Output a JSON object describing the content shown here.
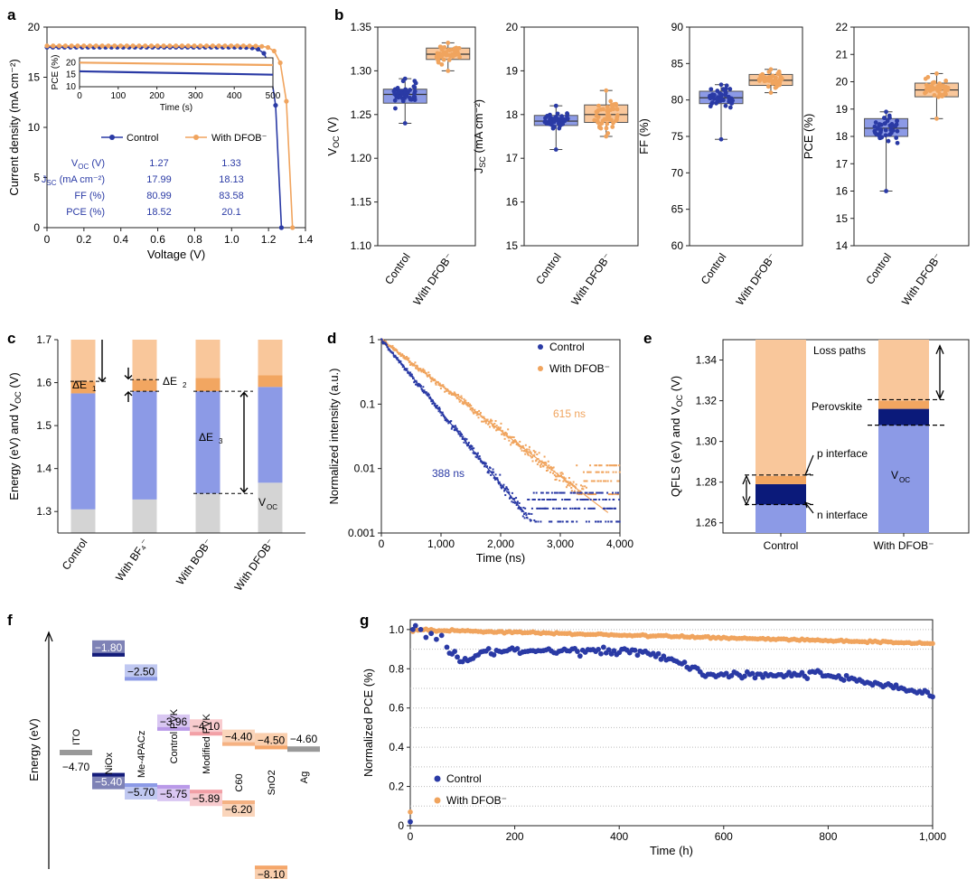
{
  "colors": {
    "control": "#2a3aa5",
    "dfob": "#f0a45e",
    "control_light": "#8c9ae6",
    "dfob_light": "#f9c79b",
    "gray": "#d4d4d4"
  },
  "chart_data": [
    {
      "panel": "a",
      "type": "line",
      "xlabel": "Voltage (V)",
      "ylabel": "Current density (mA cm⁻²)",
      "xlim": [
        0,
        1.4
      ],
      "ylim": [
        0,
        20
      ],
      "xticks": [
        "0",
        "0.2",
        "0.4",
        "0.6",
        "0.8",
        "1.0",
        "1.2",
        "1.4"
      ],
      "yticks": [
        "0",
        "5",
        "10",
        "15",
        "20"
      ],
      "series": [
        {
          "name": "Control",
          "voc": 1.27,
          "jsc": 17.99,
          "ff": 80.99,
          "pce": 18.52
        },
        {
          "name": "With DFOB⁻",
          "voc": 1.33,
          "jsc": 18.13,
          "ff": 83.58,
          "pce": 20.1
        }
      ],
      "table": {
        "rows": [
          "VOC (V)",
          "JSC (mA cm⁻²)",
          "FF (%)",
          "PCE (%)"
        ],
        "control": [
          "1.27",
          "17.99",
          "80.99",
          "18.52"
        ],
        "dfob": [
          "1.33",
          "18.13",
          "83.58",
          "20.1"
        ]
      },
      "inset": {
        "xlabel": "Time (s)",
        "ylabel": "PCE (%)",
        "xticks": [
          "0",
          "100",
          "200",
          "300",
          "400",
          "500"
        ],
        "yticks": [
          "10",
          "15",
          "20"
        ],
        "control": [
          16.4,
          15.0
        ],
        "dfob": [
          20.0,
          19.0
        ]
      }
    },
    {
      "panel": "b",
      "type": "box",
      "categories": [
        "Control",
        "With DFOB⁻"
      ],
      "plots": [
        {
          "ylabel": "VOC (V)",
          "ylim": [
            1.1,
            1.35
          ],
          "yticks": [
            "1.10",
            "1.15",
            "1.20",
            "1.25",
            "1.30",
            "1.35"
          ],
          "control": {
            "min": 1.24,
            "q1": 1.263,
            "median": 1.273,
            "q3": 1.279,
            "max": 1.291
          },
          "dfob": {
            "min": 1.3,
            "q1": 1.313,
            "median": 1.319,
            "q3": 1.326,
            "max": 1.332
          }
        },
        {
          "ylabel": "JSC (mA cm⁻²)",
          "ylim": [
            15,
            20
          ],
          "yticks": [
            "15",
            "16",
            "17",
            "18",
            "19",
            "20"
          ],
          "control": {
            "min": 17.2,
            "q1": 17.75,
            "median": 17.85,
            "q3": 17.98,
            "max": 18.2
          },
          "dfob": {
            "min": 17.5,
            "q1": 17.82,
            "median": 18.0,
            "q3": 18.22,
            "max": 18.55
          }
        },
        {
          "ylabel": "FF (%)",
          "ylim": [
            60,
            90
          ],
          "yticks": [
            "60",
            "65",
            "70",
            "75",
            "80",
            "85",
            "90"
          ],
          "control": {
            "min": 74.6,
            "q1": 79.5,
            "median": 80.3,
            "q3": 81.2,
            "max": 82.1
          },
          "dfob": {
            "min": 81.0,
            "q1": 82.0,
            "median": 82.7,
            "q3": 83.5,
            "max": 84.2
          }
        },
        {
          "ylabel": "PCE (%)",
          "ylim": [
            14,
            22
          ],
          "yticks": [
            "14",
            "15",
            "16",
            "17",
            "18",
            "19",
            "20",
            "21",
            "22"
          ],
          "control": {
            "min": 16.0,
            "q1": 18.0,
            "median": 18.3,
            "q3": 18.65,
            "max": 18.9
          },
          "dfob": {
            "min": 18.65,
            "q1": 19.45,
            "median": 19.7,
            "q3": 19.95,
            "max": 20.3
          }
        }
      ]
    },
    {
      "panel": "c",
      "type": "bar",
      "ylabel": "Energy (eV) and VOC (V)",
      "ylim": [
        1.25,
        1.7
      ],
      "yticks": [
        "1.3",
        "1.4",
        "1.5",
        "1.6",
        "1.7"
      ],
      "categories": [
        "Control",
        "With BF₄⁻",
        "With BOB⁻",
        "With DFOB⁻"
      ],
      "gray_top": [
        1.305,
        1.328,
        1.342,
        1.367
      ],
      "blue_top": [
        1.575,
        1.58,
        1.58,
        1.59
      ],
      "orange_top": [
        1.603,
        1.607,
        1.611,
        1.617
      ],
      "annotations": [
        "ΔE1",
        "ΔE2",
        "ΔE3",
        "VOC"
      ]
    },
    {
      "panel": "d",
      "type": "scatter",
      "xlabel": "Time (ns)",
      "ylabel": "Normalized intensity (a.u.)",
      "xlim": [
        0,
        4000
      ],
      "ylim": [
        0.001,
        1
      ],
      "yscale": "log",
      "xticks": [
        "0",
        "1,000",
        "2,000",
        "3,000",
        "4,000"
      ],
      "yticks": [
        "0.001",
        "0.01",
        "0.1",
        "1"
      ],
      "series": [
        {
          "name": "Control",
          "tau_ns": 388,
          "label": "388 ns"
        },
        {
          "name": "With DFOB⁻",
          "tau_ns": 615,
          "label": "615 ns"
        }
      ]
    },
    {
      "panel": "e",
      "type": "bar",
      "ylabel": "QFLS (eV) and VOC (V)",
      "ylim": [
        1.255,
        1.35
      ],
      "yticks": [
        "1.26",
        "1.28",
        "1.30",
        "1.32",
        "1.34"
      ],
      "categories": [
        "Control",
        "With DFOB⁻"
      ],
      "voc": [
        1.269,
        1.308
      ],
      "p_interface_top": [
        1.279,
        1.316
      ],
      "qfls_top": [
        1.283,
        1.32
      ],
      "labels": [
        "Loss paths",
        "Perovskite",
        "p interface",
        "n interface",
        "VOC"
      ]
    },
    {
      "panel": "f",
      "type": "diagram",
      "ylabel": "Energy (eV)",
      "layers": [
        {
          "name": "ITO",
          "top": "",
          "bottom": "−4.70"
        },
        {
          "name": "NiOx",
          "top": "−1.80",
          "bottom": "−5.40"
        },
        {
          "name": "Me-4PACz",
          "top": "−2.50",
          "bottom": "−5.70"
        },
        {
          "name": "Control PVK",
          "top": "−3.96",
          "bottom": "−5.75"
        },
        {
          "name": "Modified PVK",
          "top": "−4.10",
          "bottom": "−5.89"
        },
        {
          "name": "C60",
          "top": "−4.40",
          "bottom": "−6.20"
        },
        {
          "name": "SnO2",
          "top": "−4.50",
          "bottom": "−8.10"
        },
        {
          "name": "Ag",
          "top": "−4.60",
          "bottom": ""
        }
      ]
    },
    {
      "panel": "g",
      "type": "scatter",
      "xlabel": "Time (h)",
      "ylabel": "Normalized PCE (%)",
      "xlim": [
        0,
        1000
      ],
      "ylim": [
        0,
        1.0
      ],
      "xticks": [
        "0",
        "200",
        "400",
        "600",
        "800",
        "1,000"
      ],
      "yticks": [
        "0",
        "0.2",
        "0.4",
        "0.6",
        "0.8",
        "1.0"
      ],
      "series": [
        {
          "name": "Control",
          "final": 0.66
        },
        {
          "name": "With DFOB⁻",
          "final": 0.93
        }
      ]
    }
  ],
  "labels": {
    "panel_a": "a",
    "panel_b": "b",
    "panel_c": "c",
    "panel_d": "d",
    "panel_e": "e",
    "panel_f": "f",
    "panel_g": "g",
    "a_legend_control": "Control",
    "a_legend_dfob": "With DFOB⁻",
    "legend_control": "Control",
    "legend_dfob": "With DFOB⁻",
    "tau_control": "388 ns",
    "tau_dfob": "615 ns",
    "c_de1": "ΔE",
    "c_de2": "ΔE",
    "c_de3": "ΔE",
    "c_voc": "V",
    "e_loss": "Loss paths",
    "e_perov": "Perovskite",
    "e_pint": "p interface",
    "e_nint": "n interface",
    "e_voc": "V"
  }
}
